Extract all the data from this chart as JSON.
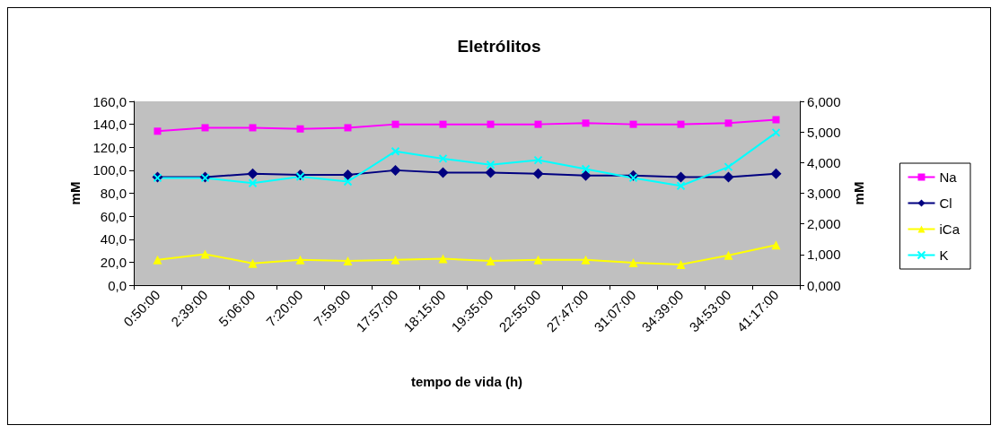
{
  "chart_data": {
    "type": "line",
    "title": "Eletrólitos",
    "xlabel": "tempo de vida (h)",
    "ylabel": "mM",
    "y2label": "mM",
    "categories": [
      "0:50:00",
      "2:39:00",
      "5:06:00",
      "7:20:00",
      "7:59:00",
      "17:57:00",
      "18:15:00",
      "19:35:00",
      "22:55:00",
      "27:47:00",
      "31:07:00",
      "34:39:00",
      "34:53:00",
      "41:17:00"
    ],
    "series": [
      {
        "name": "Na",
        "color": "#ff00ff",
        "marker": "square",
        "values": [
          134,
          137,
          137,
          136,
          137,
          140,
          140,
          140,
          140,
          141,
          140,
          140,
          141,
          144
        ]
      },
      {
        "name": "Cl",
        "color": "#000080",
        "marker": "diamond",
        "values": [
          94,
          94,
          97,
          96,
          96,
          100,
          98,
          98,
          97,
          95.5,
          95.5,
          94,
          94,
          97
        ]
      },
      {
        "name": "iCa",
        "color": "#ffff00",
        "marker": "triangle",
        "values": [
          22,
          27,
          19,
          22,
          21,
          22,
          23,
          21,
          22,
          22,
          19.5,
          18,
          26,
          35
        ]
      },
      {
        "name": "K",
        "color": "#00ffff",
        "marker": "cross",
        "axis": "y2",
        "values": [
          3.5,
          3.5,
          3.33,
          3.54,
          3.38,
          4.37,
          4.13,
          3.93,
          4.08,
          3.79,
          3.5,
          3.24,
          3.86,
          4.98
        ]
      }
    ],
    "ylim": [
      0,
      160
    ],
    "yticks": [
      {
        "value": 0,
        "label": "0,0"
      },
      {
        "value": 20,
        "label": "20,0"
      },
      {
        "value": 40,
        "label": "40,0"
      },
      {
        "value": 60,
        "label": "60,0"
      },
      {
        "value": 80,
        "label": "80,0"
      },
      {
        "value": 100,
        "label": "100,0"
      },
      {
        "value": 120,
        "label": "120,0"
      },
      {
        "value": 140,
        "label": "140,0"
      },
      {
        "value": 160,
        "label": "160,0"
      }
    ],
    "y2lim": [
      0,
      6
    ],
    "y2ticks": [
      {
        "value": 0,
        "label": "0,000"
      },
      {
        "value": 1,
        "label": "1,000"
      },
      {
        "value": 2,
        "label": "2,000"
      },
      {
        "value": 3,
        "label": "3,000"
      },
      {
        "value": 4,
        "label": "4,000"
      },
      {
        "value": 5,
        "label": "5,000"
      },
      {
        "value": 6,
        "label": "6,000"
      }
    ],
    "legend": "right",
    "grid": false,
    "line_style": "solid"
  }
}
